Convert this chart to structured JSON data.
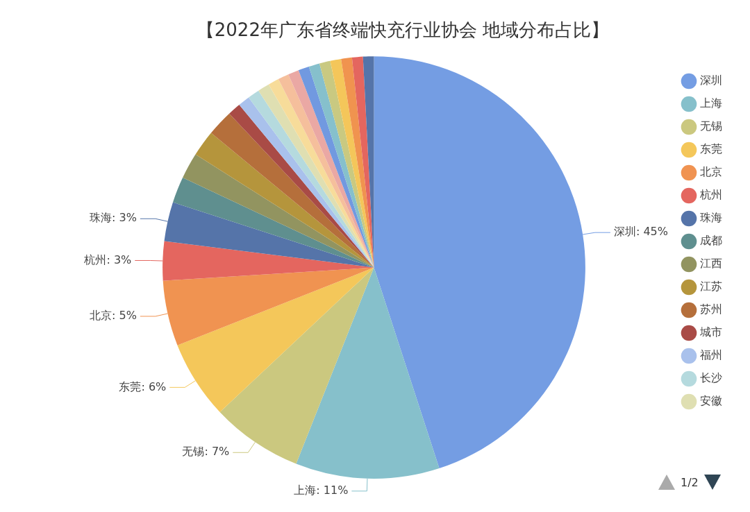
{
  "chart_data": {
    "type": "pie",
    "title": "【2022年广东省终端快充行业协会 地域分布占比】",
    "categories": [
      "深圳",
      "上海",
      "无锡",
      "东莞",
      "北京",
      "杭州",
      "珠海",
      "成都",
      "江西",
      "江苏",
      "苏州",
      "城市",
      "福州",
      "长沙",
      "安徽",
      null,
      null,
      null,
      null,
      null,
      null,
      null,
      null,
      null,
      null
    ],
    "values": [
      45,
      11,
      7,
      6,
      5,
      3,
      3,
      2,
      2,
      2,
      2,
      1,
      0.9,
      0.9,
      0.9,
      0.83,
      0.83,
      0.83,
      0.83,
      0.83,
      0.83,
      0.83,
      0.83,
      0.83,
      0.83
    ],
    "annotations": [
      "1/2"
    ],
    "value_labels": [
      "深圳: 45%",
      "上海: 11%",
      "无锡: 7%",
      "东莞: 6%",
      "北京: 5%",
      "杭州: 3%",
      "珠海: 3%",
      null,
      null,
      null,
      null,
      null,
      null,
      null,
      null,
      null,
      null,
      null,
      null,
      null,
      null,
      null,
      null,
      null,
      null
    ],
    "colors": [
      "#749de3",
      "#86c0cb",
      "#cbc87f",
      "#f4c75a",
      "#f09351",
      "#e4665f",
      "#5574a9",
      "#5f8f8f",
      "#929460",
      "#b5953c",
      "#b56f3b",
      "#a94b46",
      "#a9c1ec",
      "#b5dade",
      "#dfdfb2",
      "#f7dc9a",
      "#f5bf9c",
      "#eaa8a4",
      "#7199e0",
      "#86c0cc",
      "#c9c981",
      "#f4c65a",
      "#f0934f",
      "#e4665f",
      "#5574a9"
    ],
    "legend": "right"
  }
}
